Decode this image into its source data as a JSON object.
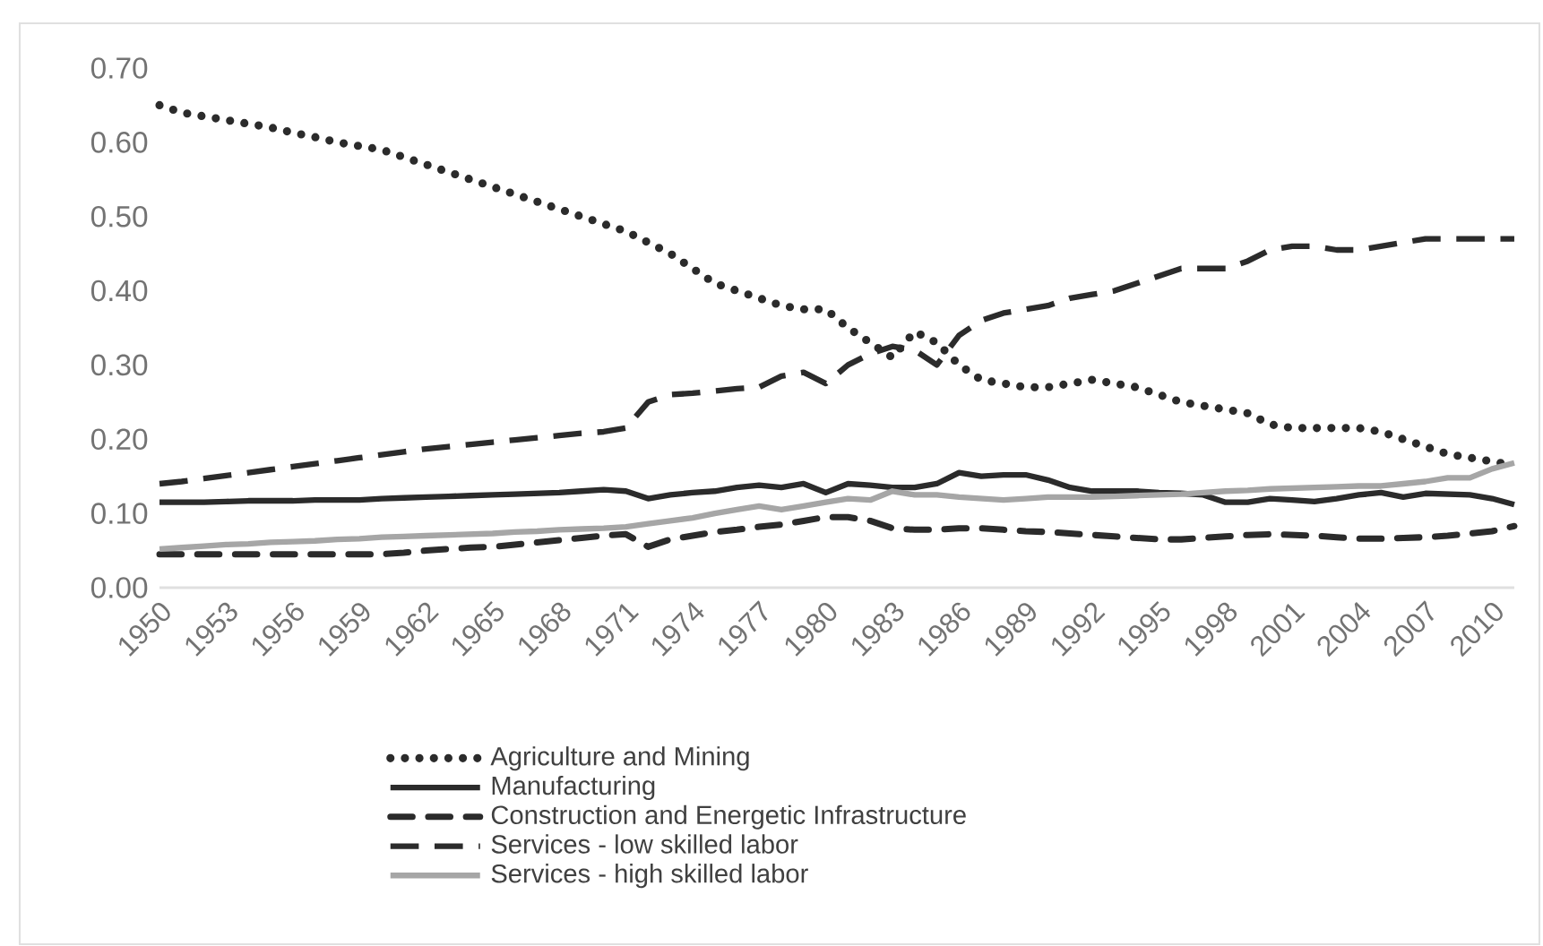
{
  "chart_data": {
    "type": "line",
    "categories": [
      "1950",
      null,
      null,
      "1953",
      null,
      null,
      "1956",
      null,
      null,
      "1959",
      null,
      null,
      "1962",
      null,
      null,
      "1965",
      null,
      null,
      "1968",
      null,
      null,
      "1971",
      null,
      null,
      "1974",
      null,
      null,
      "1977",
      null,
      null,
      "1980",
      null,
      null,
      "1983",
      null,
      null,
      "1986",
      null,
      null,
      "1989",
      null,
      null,
      "1992",
      null,
      null,
      "1995",
      null,
      null,
      "1998",
      null,
      null,
      "2001",
      null,
      null,
      "2004",
      null,
      null,
      "2007",
      null,
      null,
      "2010",
      null
    ],
    "series": [
      {
        "name": "Agriculture and Mining",
        "color": "#2b2b2b",
        "line_style": "dotted",
        "values": [
          0.65,
          0.64,
          0.635,
          0.63,
          0.625,
          0.62,
          0.613,
          0.607,
          0.6,
          0.595,
          0.59,
          0.58,
          0.57,
          0.56,
          0.55,
          0.54,
          0.53,
          0.52,
          0.51,
          0.5,
          0.49,
          0.48,
          0.465,
          0.45,
          0.43,
          0.41,
          0.4,
          0.39,
          0.38,
          0.375,
          0.375,
          0.35,
          0.33,
          0.31,
          0.345,
          0.33,
          0.3,
          0.28,
          0.275,
          0.27,
          0.27,
          0.275,
          0.28,
          0.275,
          0.27,
          0.26,
          0.25,
          0.245,
          0.24,
          0.235,
          0.22,
          0.215,
          0.215,
          0.215,
          0.215,
          0.21,
          0.2,
          0.19,
          0.18,
          0.175,
          0.17,
          0.165
        ]
      },
      {
        "name": "Manufacturing",
        "color": "#2b2b2b",
        "line_style": "solid",
        "values": [
          0.115,
          0.115,
          0.115,
          0.116,
          0.117,
          0.117,
          0.117,
          0.118,
          0.118,
          0.118,
          0.12,
          0.121,
          0.122,
          0.123,
          0.124,
          0.125,
          0.126,
          0.127,
          0.128,
          0.13,
          0.132,
          0.13,
          0.12,
          0.125,
          0.128,
          0.13,
          0.135,
          0.138,
          0.135,
          0.14,
          0.128,
          0.14,
          0.138,
          0.135,
          0.135,
          0.14,
          0.155,
          0.15,
          0.152,
          0.152,
          0.145,
          0.135,
          0.13,
          0.13,
          0.13,
          0.128,
          0.127,
          0.125,
          0.115,
          0.115,
          0.12,
          0.118,
          0.116,
          0.12,
          0.125,
          0.128,
          0.122,
          0.127,
          0.126,
          0.125,
          0.12,
          0.112
        ]
      },
      {
        "name": "Construction and Energetic Infrastructure",
        "color": "#2b2b2b",
        "line_style": "dashdot",
        "values": [
          0.045,
          0.045,
          0.045,
          0.045,
          0.045,
          0.045,
          0.045,
          0.045,
          0.045,
          0.045,
          0.045,
          0.047,
          0.05,
          0.052,
          0.054,
          0.055,
          0.058,
          0.061,
          0.064,
          0.067,
          0.07,
          0.072,
          0.055,
          0.065,
          0.07,
          0.075,
          0.078,
          0.082,
          0.085,
          0.09,
          0.095,
          0.095,
          0.09,
          0.08,
          0.078,
          0.078,
          0.08,
          0.08,
          0.078,
          0.076,
          0.075,
          0.073,
          0.071,
          0.069,
          0.067,
          0.065,
          0.065,
          0.067,
          0.069,
          0.071,
          0.072,
          0.071,
          0.07,
          0.068,
          0.066,
          0.066,
          0.067,
          0.068,
          0.07,
          0.073,
          0.076,
          0.083
        ]
      },
      {
        "name": "Services - low skilled labor",
        "color": "#2b2b2b",
        "line_style": "dashed",
        "values": [
          0.14,
          0.143,
          0.147,
          0.151,
          0.155,
          0.159,
          0.163,
          0.167,
          0.171,
          0.175,
          0.179,
          0.183,
          0.187,
          0.19,
          0.193,
          0.196,
          0.199,
          0.202,
          0.205,
          0.208,
          0.21,
          0.215,
          0.25,
          0.26,
          0.262,
          0.265,
          0.268,
          0.27,
          0.285,
          0.29,
          0.275,
          0.3,
          0.315,
          0.325,
          0.32,
          0.3,
          0.34,
          0.36,
          0.37,
          0.375,
          0.38,
          0.39,
          0.395,
          0.4,
          0.41,
          0.42,
          0.43,
          0.43,
          0.43,
          0.44,
          0.455,
          0.46,
          0.46,
          0.455,
          0.455,
          0.46,
          0.465,
          0.47,
          0.47,
          0.47,
          0.47,
          0.47
        ]
      },
      {
        "name": "Services - high skilled labor",
        "color": "#a6a6a6",
        "line_style": "solid",
        "values": [
          0.052,
          0.054,
          0.056,
          0.058,
          0.059,
          0.061,
          0.062,
          0.063,
          0.065,
          0.066,
          0.068,
          0.069,
          0.07,
          0.071,
          0.072,
          0.073,
          0.075,
          0.076,
          0.078,
          0.079,
          0.08,
          0.082,
          0.086,
          0.09,
          0.094,
          0.1,
          0.105,
          0.11,
          0.105,
          0.11,
          0.115,
          0.12,
          0.118,
          0.13,
          0.125,
          0.125,
          0.122,
          0.12,
          0.118,
          0.12,
          0.122,
          0.122,
          0.122,
          0.123,
          0.124,
          0.125,
          0.126,
          0.128,
          0.13,
          0.131,
          0.133,
          0.134,
          0.135,
          0.136,
          0.137,
          0.137,
          0.14,
          0.143,
          0.148,
          0.148,
          0.16,
          0.168
        ]
      }
    ],
    "ylim": [
      0,
      0.7
    ],
    "yticks": [
      {
        "value": 0,
        "label": "0.00"
      },
      {
        "value": 0.1,
        "label": "0.10"
      },
      {
        "value": 0.2,
        "label": "0.20"
      },
      {
        "value": 0.3,
        "label": "0.30"
      },
      {
        "value": 0.4,
        "label": "0.40"
      },
      {
        "value": 0.5,
        "label": "0.50"
      },
      {
        "value": 0.6,
        "label": "0.60"
      },
      {
        "value": 0.7,
        "label": "0.70"
      }
    ],
    "legend": "bottom",
    "marker": "none"
  }
}
